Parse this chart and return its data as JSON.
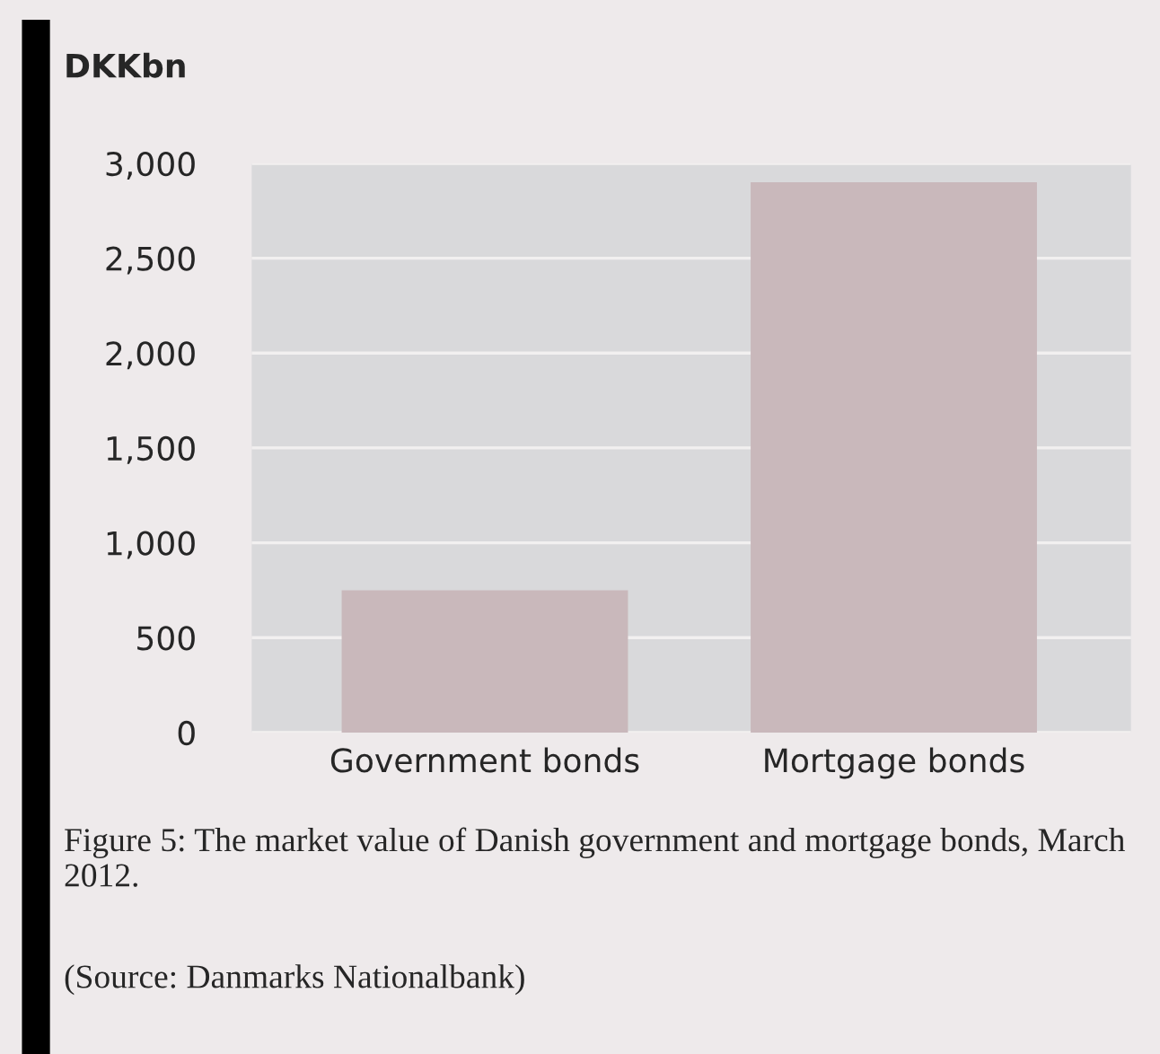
{
  "chart_data": {
    "type": "bar",
    "ylabel": "DKKbn",
    "categories": [
      "Government bonds",
      "Mortgage bonds"
    ],
    "values": [
      750,
      2900
    ],
    "color": "#c9b8bb",
    "ylim": [
      0,
      3000
    ],
    "yticks": [
      {
        "value": 0,
        "label": "0"
      },
      {
        "value": 500,
        "label": "500"
      },
      {
        "value": 1000,
        "label": "1,000"
      },
      {
        "value": 1500,
        "label": "1,500"
      },
      {
        "value": 2000,
        "label": "2,000"
      },
      {
        "value": 2500,
        "label": "2,500"
      },
      {
        "value": 3000,
        "label": "3,000"
      }
    ],
    "grid": "y",
    "annotations": [
      "Figure 5: The market value of Danish government and mortgage bonds, March 2012.",
      "(Source: Danmarks Nationalbank)"
    ]
  }
}
